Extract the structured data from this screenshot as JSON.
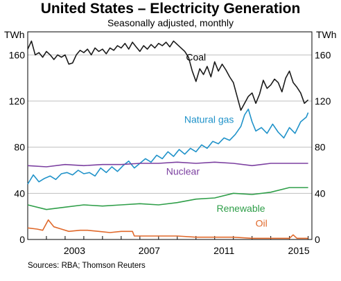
{
  "chart_data": {
    "type": "line",
    "title": "United States – Electricity Generation",
    "subtitle": "Seasonally adjusted, monthly",
    "unit_left": "TWh",
    "unit_right": "TWh",
    "source": "Sources:  RBA; Thomson Reuters",
    "ylim": [
      0,
      180
    ],
    "yticks": [
      0,
      40,
      80,
      120,
      160
    ],
    "xlim": [
      2000.0,
      2015.2
    ],
    "xticks": [
      2003,
      2007,
      2011,
      2015
    ],
    "grid": true,
    "series": [
      {
        "name": "Coal",
        "color": "#1a1a1a",
        "points": [
          [
            2000.0,
            165
          ],
          [
            2000.2,
            172
          ],
          [
            2000.4,
            160
          ],
          [
            2000.6,
            162
          ],
          [
            2000.8,
            158
          ],
          [
            2001.0,
            163
          ],
          [
            2001.2,
            160
          ],
          [
            2001.4,
            156
          ],
          [
            2001.6,
            160
          ],
          [
            2001.8,
            158
          ],
          [
            2002.0,
            160
          ],
          [
            2002.2,
            152
          ],
          [
            2002.4,
            153
          ],
          [
            2002.6,
            160
          ],
          [
            2002.8,
            164
          ],
          [
            2003.0,
            162
          ],
          [
            2003.2,
            165
          ],
          [
            2003.4,
            160
          ],
          [
            2003.6,
            166
          ],
          [
            2003.8,
            163
          ],
          [
            2004.0,
            165
          ],
          [
            2004.2,
            161
          ],
          [
            2004.4,
            166
          ],
          [
            2004.6,
            164
          ],
          [
            2004.8,
            168
          ],
          [
            2005.0,
            166
          ],
          [
            2005.2,
            170
          ],
          [
            2005.4,
            165
          ],
          [
            2005.6,
            171
          ],
          [
            2005.8,
            167
          ],
          [
            2006.0,
            163
          ],
          [
            2006.2,
            168
          ],
          [
            2006.4,
            165
          ],
          [
            2006.6,
            169
          ],
          [
            2006.8,
            166
          ],
          [
            2007.0,
            170
          ],
          [
            2007.2,
            168
          ],
          [
            2007.4,
            171
          ],
          [
            2007.6,
            167
          ],
          [
            2007.8,
            172
          ],
          [
            2008.0,
            169
          ],
          [
            2008.2,
            166
          ],
          [
            2008.4,
            163
          ],
          [
            2008.6,
            158
          ],
          [
            2008.8,
            146
          ],
          [
            2009.0,
            137
          ],
          [
            2009.2,
            148
          ],
          [
            2009.4,
            143
          ],
          [
            2009.6,
            150
          ],
          [
            2009.8,
            141
          ],
          [
            2010.0,
            154
          ],
          [
            2010.2,
            146
          ],
          [
            2010.4,
            152
          ],
          [
            2010.6,
            147
          ],
          [
            2010.8,
            141
          ],
          [
            2011.0,
            136
          ],
          [
            2011.2,
            124
          ],
          [
            2011.4,
            112
          ],
          [
            2011.6,
            118
          ],
          [
            2011.8,
            124
          ],
          [
            2012.0,
            127
          ],
          [
            2012.2,
            118
          ],
          [
            2012.4,
            126
          ],
          [
            2012.6,
            138
          ],
          [
            2012.8,
            131
          ],
          [
            2013.0,
            134
          ],
          [
            2013.2,
            139
          ],
          [
            2013.4,
            136
          ],
          [
            2013.6,
            128
          ],
          [
            2013.8,
            140
          ],
          [
            2014.0,
            146
          ],
          [
            2014.2,
            136
          ],
          [
            2014.4,
            132
          ],
          [
            2014.6,
            127
          ],
          [
            2014.8,
            118
          ],
          [
            2015.0,
            121
          ]
        ]
      },
      {
        "name": "Natural gas",
        "color": "#1f92c9",
        "points": [
          [
            2000.0,
            48
          ],
          [
            2000.3,
            56
          ],
          [
            2000.6,
            50
          ],
          [
            2000.9,
            53
          ],
          [
            2001.2,
            55
          ],
          [
            2001.5,
            52
          ],
          [
            2001.8,
            57
          ],
          [
            2002.1,
            58
          ],
          [
            2002.4,
            56
          ],
          [
            2002.7,
            60
          ],
          [
            2003.0,
            57
          ],
          [
            2003.3,
            58
          ],
          [
            2003.6,
            55
          ],
          [
            2003.9,
            62
          ],
          [
            2004.2,
            58
          ],
          [
            2004.5,
            63
          ],
          [
            2004.8,
            59
          ],
          [
            2005.1,
            64
          ],
          [
            2005.4,
            68
          ],
          [
            2005.7,
            62
          ],
          [
            2006.0,
            66
          ],
          [
            2006.3,
            70
          ],
          [
            2006.6,
            67
          ],
          [
            2006.9,
            73
          ],
          [
            2007.2,
            70
          ],
          [
            2007.5,
            76
          ],
          [
            2007.8,
            72
          ],
          [
            2008.1,
            78
          ],
          [
            2008.4,
            74
          ],
          [
            2008.7,
            79
          ],
          [
            2009.0,
            76
          ],
          [
            2009.3,
            82
          ],
          [
            2009.6,
            79
          ],
          [
            2009.9,
            85
          ],
          [
            2010.2,
            83
          ],
          [
            2010.5,
            88
          ],
          [
            2010.8,
            86
          ],
          [
            2011.1,
            91
          ],
          [
            2011.4,
            98
          ],
          [
            2011.6,
            108
          ],
          [
            2011.8,
            113
          ],
          [
            2012.0,
            102
          ],
          [
            2012.2,
            94
          ],
          [
            2012.5,
            97
          ],
          [
            2012.8,
            92
          ],
          [
            2013.1,
            100
          ],
          [
            2013.4,
            93
          ],
          [
            2013.7,
            88
          ],
          [
            2014.0,
            97
          ],
          [
            2014.3,
            92
          ],
          [
            2014.6,
            102
          ],
          [
            2014.9,
            106
          ],
          [
            2015.0,
            110
          ]
        ]
      },
      {
        "name": "Nuclear",
        "color": "#7b3fa0",
        "points": [
          [
            2000.0,
            64
          ],
          [
            2001.0,
            63
          ],
          [
            2002.0,
            65
          ],
          [
            2003.0,
            64
          ],
          [
            2004.0,
            65
          ],
          [
            2005.0,
            65
          ],
          [
            2006.0,
            66
          ],
          [
            2007.0,
            66
          ],
          [
            2008.0,
            67
          ],
          [
            2009.0,
            66
          ],
          [
            2010.0,
            67
          ],
          [
            2011.0,
            66
          ],
          [
            2012.0,
            64
          ],
          [
            2013.0,
            66
          ],
          [
            2014.0,
            66
          ],
          [
            2015.0,
            66
          ]
        ]
      },
      {
        "name": "Renewable",
        "color": "#2e9e48",
        "points": [
          [
            2000.0,
            30
          ],
          [
            2001.0,
            26
          ],
          [
            2002.0,
            28
          ],
          [
            2003.0,
            30
          ],
          [
            2004.0,
            29
          ],
          [
            2005.0,
            30
          ],
          [
            2006.0,
            31
          ],
          [
            2007.0,
            30
          ],
          [
            2008.0,
            32
          ],
          [
            2009.0,
            35
          ],
          [
            2010.0,
            36
          ],
          [
            2011.0,
            40
          ],
          [
            2012.0,
            39
          ],
          [
            2013.0,
            41
          ],
          [
            2014.0,
            45
          ],
          [
            2015.0,
            45
          ]
        ]
      },
      {
        "name": "Oil",
        "color": "#e0682a",
        "points": [
          [
            2000.0,
            10
          ],
          [
            2000.5,
            9
          ],
          [
            2000.8,
            8
          ],
          [
            2001.1,
            17
          ],
          [
            2001.4,
            11
          ],
          [
            2001.8,
            9
          ],
          [
            2002.2,
            7
          ],
          [
            2002.8,
            8
          ],
          [
            2003.2,
            8
          ],
          [
            2003.8,
            7
          ],
          [
            2004.4,
            6
          ],
          [
            2005.0,
            7
          ],
          [
            2005.6,
            7
          ],
          [
            2005.7,
            3
          ],
          [
            2006.4,
            3
          ],
          [
            2007.0,
            3
          ],
          [
            2008.0,
            3
          ],
          [
            2009.0,
            2
          ],
          [
            2010.0,
            2
          ],
          [
            2011.0,
            2
          ],
          [
            2012.0,
            1
          ],
          [
            2013.0,
            1
          ],
          [
            2014.0,
            1
          ],
          [
            2014.2,
            4
          ],
          [
            2014.4,
            1
          ],
          [
            2015.0,
            1
          ]
        ]
      }
    ]
  }
}
